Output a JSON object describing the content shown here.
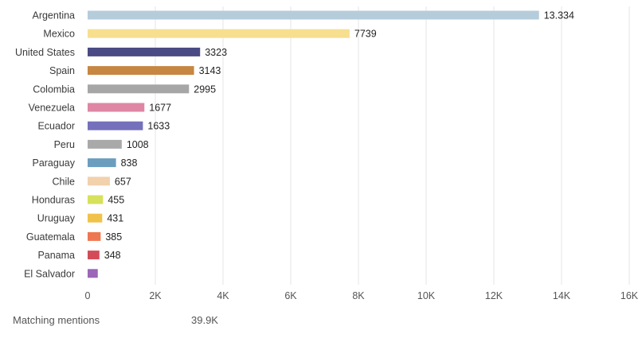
{
  "chart_data": {
    "type": "bar",
    "orientation": "horizontal",
    "categories": [
      "Argentina",
      "Mexico",
      "United States",
      "Spain",
      "Colombia",
      "Venezuela",
      "Ecuador",
      "Peru",
      "Paraguay",
      "Chile",
      "Honduras",
      "Uruguay",
      "Guatemala",
      "Panama",
      "El Salvador"
    ],
    "values": [
      13334,
      7739,
      3323,
      3143,
      2995,
      1677,
      1633,
      1008,
      838,
      657,
      455,
      431,
      385,
      348,
      300
    ],
    "value_labels": [
      "13.334",
      "7739",
      "3323",
      "3143",
      "2995",
      "1677",
      "1633",
      "1008",
      "838",
      "657",
      "455",
      "431",
      "385",
      "348",
      ""
    ],
    "colors": [
      "#b5ccdb",
      "#f7df8f",
      "#4a4a84",
      "#c78642",
      "#a6a6a6",
      "#df86a4",
      "#7570bb",
      "#a9a9a9",
      "#6b9dbf",
      "#f2d1ad",
      "#d6e15c",
      "#f1c24a",
      "#ee7751",
      "#d34b59",
      "#9b67b8"
    ],
    "xlim": [
      0,
      16000
    ],
    "xticks": [
      0,
      2000,
      4000,
      6000,
      8000,
      10000,
      12000,
      14000,
      16000
    ],
    "xtick_labels": [
      "0",
      "2K",
      "4K",
      "6K",
      "8K",
      "10K",
      "12K",
      "14K",
      "16K"
    ],
    "grid": true,
    "title": "",
    "xlabel": "",
    "ylabel": ""
  },
  "footer": {
    "label": "Matching mentions",
    "value": "39.9K"
  }
}
